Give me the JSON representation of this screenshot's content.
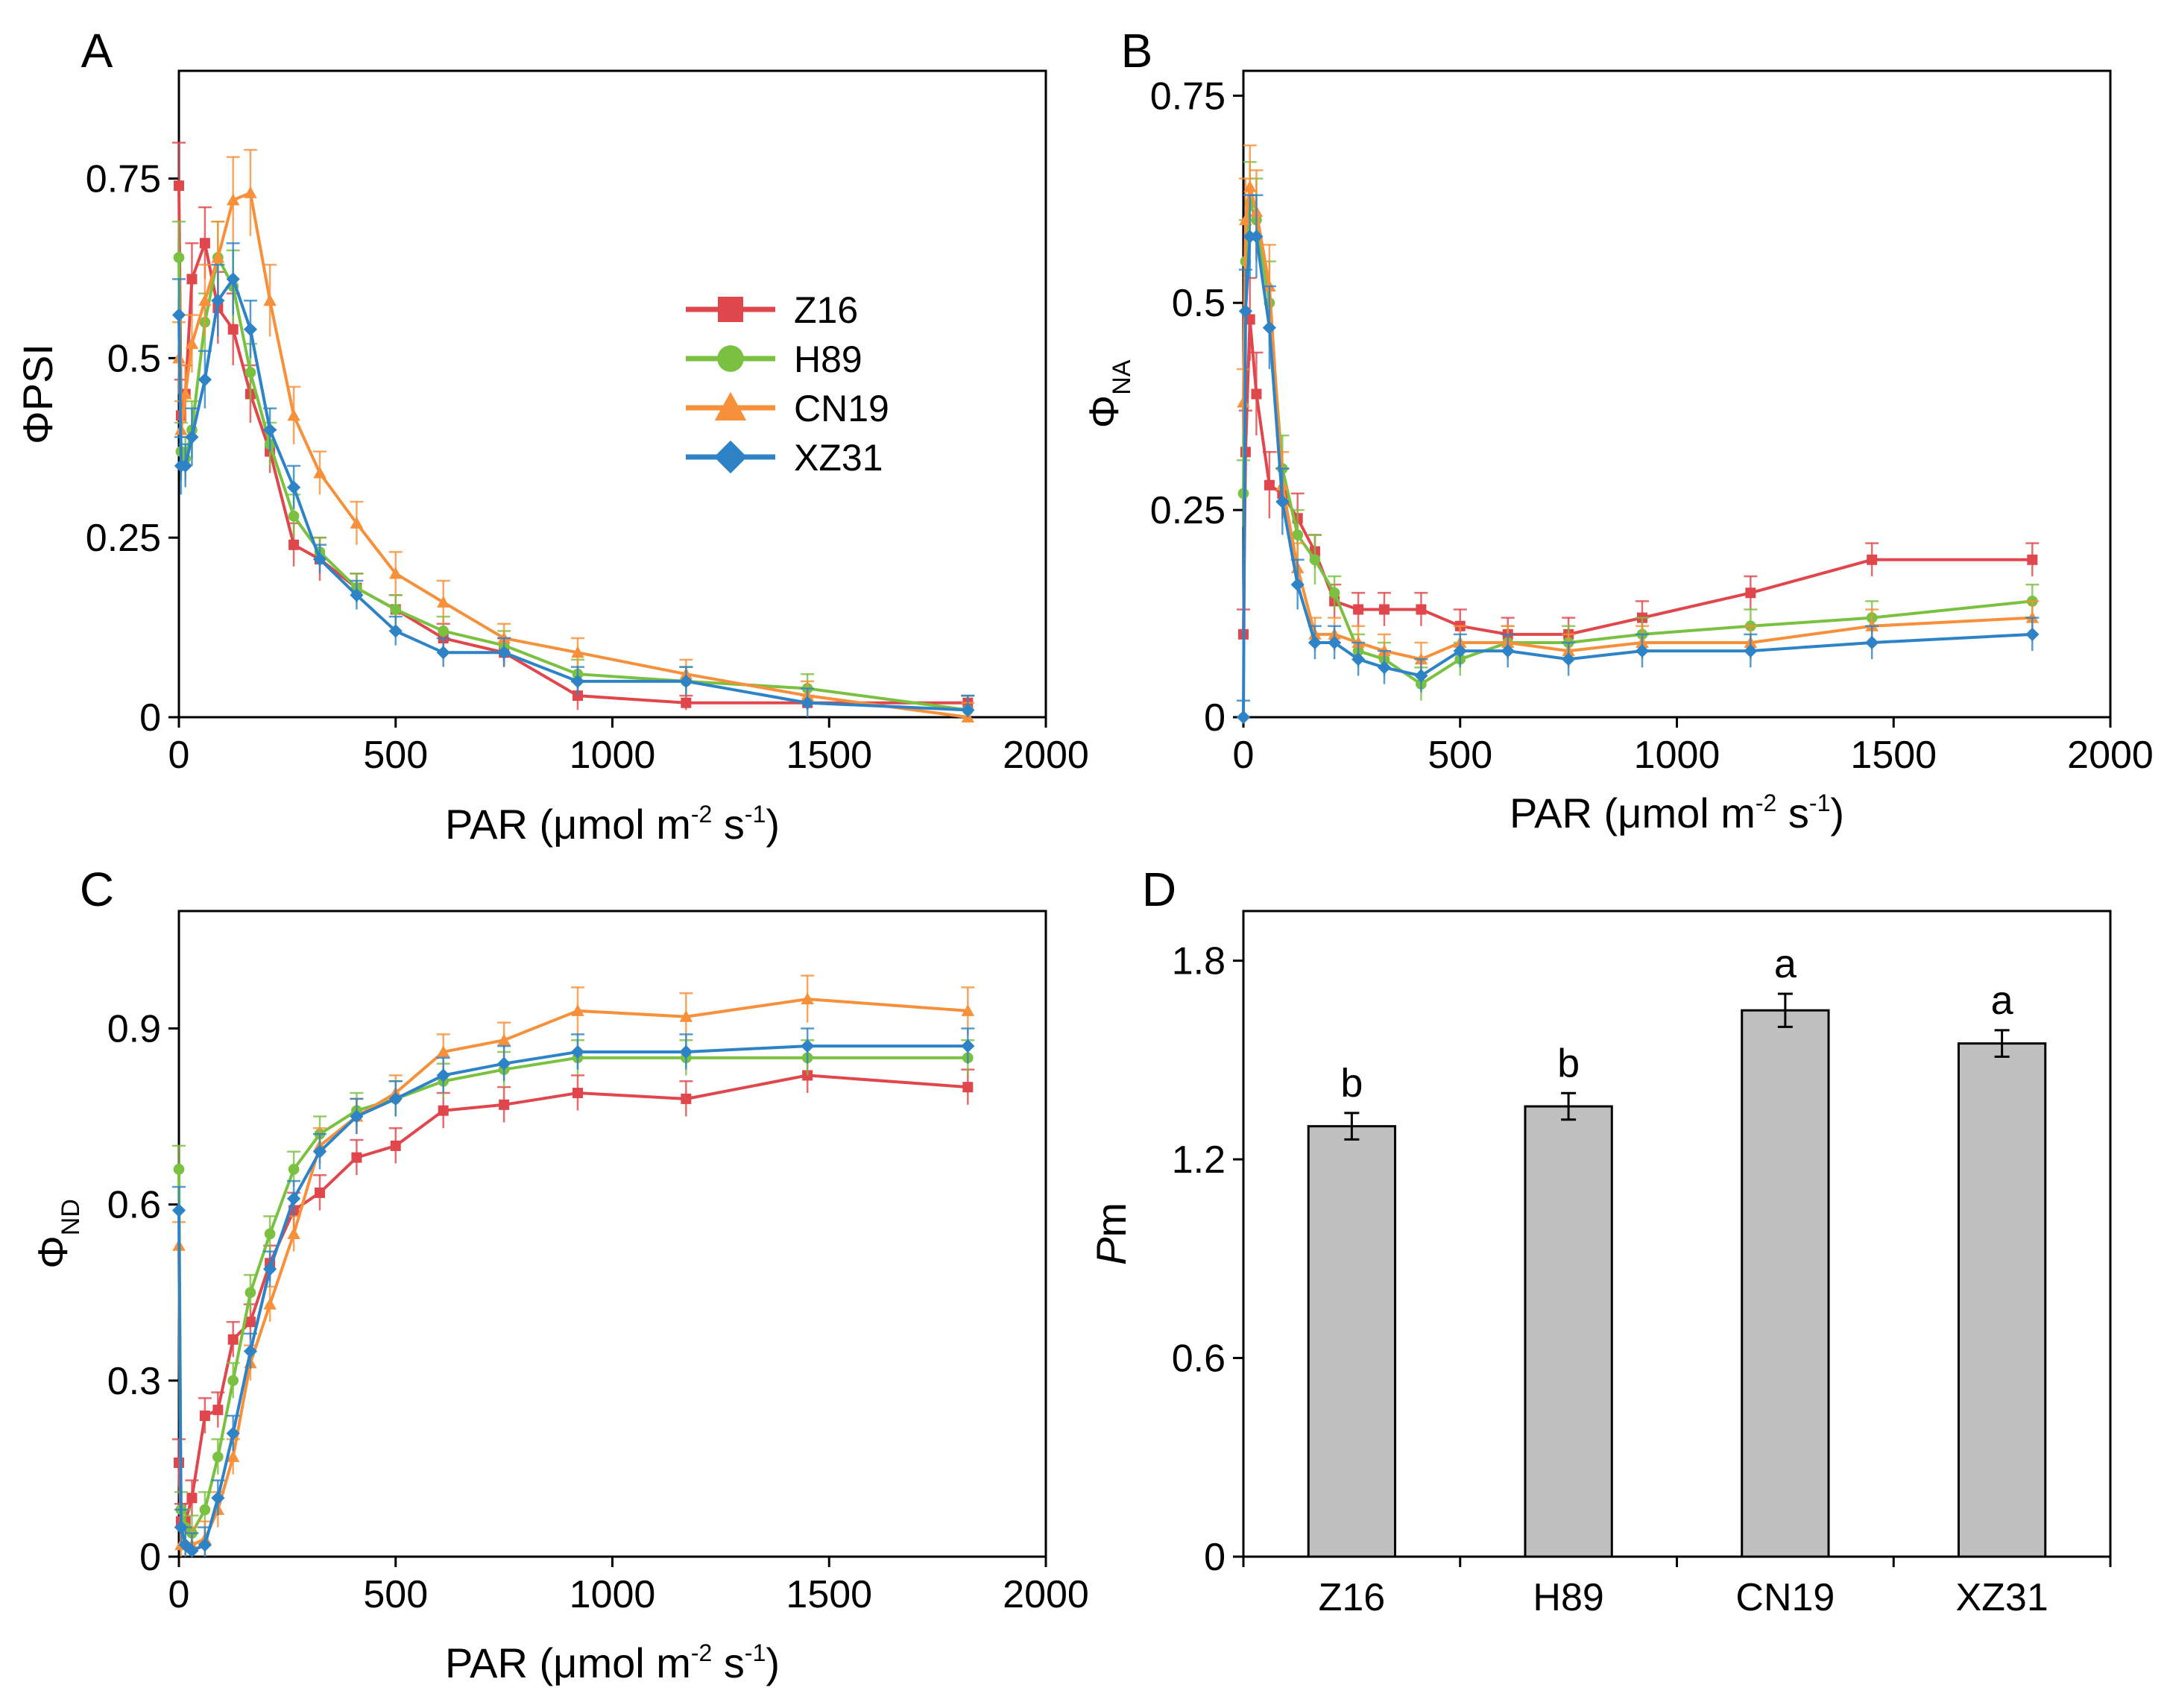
{
  "colors": {
    "Z16": "#E0474C",
    "H89": "#7AC142",
    "CN19": "#F7903A",
    "XZ31": "#2E83C6",
    "bar": "#C0C0C0"
  },
  "legend": [
    {
      "name": "Z16",
      "color": "#E0474C",
      "marker": "square"
    },
    {
      "name": "H89",
      "color": "#7AC142",
      "marker": "circle"
    },
    {
      "name": "CN19",
      "color": "#F7903A",
      "marker": "triangle"
    },
    {
      "name": "XZ31",
      "color": "#2E83C6",
      "marker": "diamond"
    }
  ],
  "chart_data": [
    {
      "panel": "A",
      "type": "line",
      "xlabel": {
        "main": "PAR (μmol m",
        "sup1": "-2",
        "mid": " s",
        "sup2": "-1",
        "close": ")"
      },
      "ylabel": {
        "main": "ΦPSI",
        "sub": ""
      },
      "xlim": [
        0,
        2000
      ],
      "ylim": [
        0,
        0.9
      ],
      "xticks": [
        0,
        500,
        1000,
        1500,
        2000
      ],
      "xtick_labels": [
        "0",
        "500",
        "1000",
        "1500",
        "2000"
      ],
      "yticks": [
        0,
        0.25,
        0.5,
        0.75
      ],
      "ytick_labels": [
        "0",
        "0.25",
        "0.5",
        "0.75"
      ],
      "legend_position": "upper-middle",
      "series": [
        {
          "name": "Z16",
          "x": [
            0,
            5,
            15,
            30,
            60,
            90,
            125,
            165,
            210,
            265,
            325,
            410,
            500,
            610,
            750,
            920,
            1170,
            1450,
            1820
          ],
          "y": [
            0.74,
            0.42,
            0.45,
            0.61,
            0.66,
            0.57,
            0.54,
            0.45,
            0.37,
            0.24,
            0.22,
            0.18,
            0.15,
            0.11,
            0.09,
            0.03,
            0.02,
            0.02,
            0.02
          ],
          "err": [
            0.06,
            0.05,
            0.04,
            0.05,
            0.05,
            0.05,
            0.05,
            0.04,
            0.03,
            0.03,
            0.03,
            0.02,
            0.02,
            0.02,
            0.02,
            0.02,
            0.01,
            0.01,
            0.01
          ]
        },
        {
          "name": "H89",
          "x": [
            0,
            5,
            15,
            30,
            60,
            90,
            125,
            165,
            210,
            265,
            325,
            410,
            500,
            610,
            750,
            920,
            1170,
            1450,
            1820
          ],
          "y": [
            0.64,
            0.37,
            0.36,
            0.4,
            0.55,
            0.64,
            0.6,
            0.48,
            0.38,
            0.28,
            0.23,
            0.18,
            0.15,
            0.12,
            0.1,
            0.06,
            0.05,
            0.04,
            0.01
          ],
          "err": [
            0.05,
            0.04,
            0.03,
            0.04,
            0.04,
            0.05,
            0.05,
            0.04,
            0.03,
            0.03,
            0.02,
            0.02,
            0.02,
            0.02,
            0.02,
            0.02,
            0.02,
            0.02,
            0.02
          ]
        },
        {
          "name": "CN19",
          "x": [
            0,
            5,
            15,
            30,
            60,
            90,
            125,
            165,
            210,
            265,
            325,
            410,
            500,
            610,
            750,
            920,
            1170,
            1450,
            1820
          ],
          "y": [
            0.5,
            0.4,
            0.45,
            0.52,
            0.58,
            0.64,
            0.72,
            0.73,
            0.58,
            0.42,
            0.34,
            0.27,
            0.2,
            0.16,
            0.11,
            0.09,
            0.06,
            0.03,
            0.0
          ],
          "err": [
            0.05,
            0.04,
            0.04,
            0.04,
            0.05,
            0.05,
            0.06,
            0.06,
            0.05,
            0.04,
            0.03,
            0.03,
            0.03,
            0.03,
            0.02,
            0.02,
            0.02,
            0.02,
            0.02
          ]
        },
        {
          "name": "XZ31",
          "x": [
            0,
            5,
            15,
            30,
            60,
            90,
            125,
            165,
            210,
            265,
            325,
            410,
            500,
            610,
            750,
            920,
            1170,
            1450,
            1820
          ],
          "y": [
            0.56,
            0.35,
            0.35,
            0.39,
            0.47,
            0.58,
            0.61,
            0.54,
            0.4,
            0.32,
            0.22,
            0.17,
            0.12,
            0.09,
            0.09,
            0.05,
            0.05,
            0.02,
            0.01
          ],
          "err": [
            0.05,
            0.04,
            0.03,
            0.04,
            0.04,
            0.05,
            0.05,
            0.04,
            0.03,
            0.03,
            0.02,
            0.02,
            0.02,
            0.02,
            0.02,
            0.02,
            0.02,
            0.02,
            0.02
          ]
        }
      ]
    },
    {
      "panel": "B",
      "type": "line",
      "xlabel": {
        "main": "PAR (μmol m",
        "sup1": "-2",
        "mid": " s",
        "sup2": "-1",
        "close": ")"
      },
      "ylabel": {
        "main": "Φ",
        "sub": "NA"
      },
      "xlim": [
        0,
        2000
      ],
      "ylim": [
        0,
        0.78
      ],
      "xticks": [
        0,
        500,
        1000,
        1500,
        2000
      ],
      "xtick_labels": [
        "0",
        "500",
        "1000",
        "1500",
        "2000"
      ],
      "yticks": [
        0,
        0.25,
        0.5,
        0.75
      ],
      "ytick_labels": [
        "0",
        "0.25",
        "0.5",
        "0.75"
      ],
      "series": [
        {
          "name": "Z16",
          "x": [
            0,
            5,
            15,
            30,
            60,
            90,
            125,
            165,
            210,
            265,
            325,
            410,
            500,
            610,
            750,
            920,
            1170,
            1450,
            1820
          ],
          "y": [
            0.1,
            0.32,
            0.48,
            0.39,
            0.28,
            0.27,
            0.24,
            0.2,
            0.14,
            0.13,
            0.13,
            0.13,
            0.11,
            0.1,
            0.1,
            0.12,
            0.15,
            0.19,
            0.19
          ],
          "err": [
            0.03,
            0.05,
            0.05,
            0.05,
            0.04,
            0.03,
            0.03,
            0.02,
            0.02,
            0.02,
            0.02,
            0.02,
            0.02,
            0.02,
            0.02,
            0.02,
            0.02,
            0.02,
            0.02
          ]
        },
        {
          "name": "H89",
          "x": [
            0,
            5,
            15,
            30,
            60,
            90,
            125,
            165,
            210,
            265,
            325,
            410,
            500,
            610,
            750,
            920,
            1170,
            1450,
            1820
          ],
          "y": [
            0.27,
            0.55,
            0.62,
            0.6,
            0.5,
            0.3,
            0.22,
            0.19,
            0.15,
            0.08,
            0.07,
            0.04,
            0.07,
            0.09,
            0.09,
            0.1,
            0.11,
            0.12,
            0.14
          ],
          "err": [
            0.04,
            0.05,
            0.05,
            0.05,
            0.05,
            0.04,
            0.03,
            0.03,
            0.02,
            0.02,
            0.02,
            0.02,
            0.02,
            0.02,
            0.02,
            0.02,
            0.02,
            0.02,
            0.02
          ]
        },
        {
          "name": "CN19",
          "x": [
            0,
            5,
            15,
            30,
            60,
            90,
            125,
            165,
            210,
            265,
            325,
            410,
            500,
            610,
            750,
            920,
            1170,
            1450,
            1820
          ],
          "y": [
            0.38,
            0.6,
            0.64,
            0.61,
            0.52,
            0.28,
            0.18,
            0.1,
            0.1,
            0.09,
            0.08,
            0.07,
            0.09,
            0.09,
            0.08,
            0.09,
            0.09,
            0.11,
            0.12
          ],
          "err": [
            0.04,
            0.05,
            0.05,
            0.05,
            0.05,
            0.04,
            0.03,
            0.02,
            0.02,
            0.02,
            0.02,
            0.02,
            0.02,
            0.02,
            0.02,
            0.02,
            0.02,
            0.02,
            0.02
          ]
        },
        {
          "name": "XZ31",
          "x": [
            0,
            5,
            15,
            30,
            60,
            90,
            125,
            165,
            210,
            265,
            325,
            410,
            500,
            610,
            750,
            920,
            1170,
            1450,
            1820
          ],
          "y": [
            0.0,
            0.49,
            0.58,
            0.58,
            0.47,
            0.26,
            0.16,
            0.09,
            0.09,
            0.07,
            0.06,
            0.05,
            0.08,
            0.08,
            0.07,
            0.08,
            0.08,
            0.09,
            0.1
          ],
          "err": [
            0.02,
            0.05,
            0.05,
            0.05,
            0.05,
            0.04,
            0.03,
            0.02,
            0.02,
            0.02,
            0.02,
            0.02,
            0.02,
            0.02,
            0.02,
            0.02,
            0.02,
            0.02,
            0.02
          ]
        }
      ]
    },
    {
      "panel": "C",
      "type": "line",
      "xlabel": {
        "main": "PAR (μmol m",
        "sup1": "-2",
        "mid": " s",
        "sup2": "-1",
        "close": ")"
      },
      "ylabel": {
        "main": "Φ",
        "sub": "ND"
      },
      "xlim": [
        0,
        2000
      ],
      "ylim": [
        0,
        1.1
      ],
      "xticks": [
        0,
        500,
        1000,
        1500,
        2000
      ],
      "xtick_labels": [
        "0",
        "500",
        "1000",
        "1500",
        "2000"
      ],
      "yticks": [
        0,
        0.3,
        0.6,
        0.9
      ],
      "ytick_labels": [
        "0",
        "0.3",
        "0.6",
        "0.9"
      ],
      "series": [
        {
          "name": "Z16",
          "x": [
            0,
            5,
            15,
            30,
            60,
            90,
            125,
            165,
            210,
            265,
            325,
            410,
            500,
            610,
            750,
            920,
            1170,
            1450,
            1820
          ],
          "y": [
            0.16,
            0.06,
            0.06,
            0.1,
            0.24,
            0.25,
            0.37,
            0.4,
            0.5,
            0.59,
            0.62,
            0.68,
            0.7,
            0.76,
            0.77,
            0.79,
            0.78,
            0.82,
            0.8
          ],
          "err": [
            0.04,
            0.03,
            0.03,
            0.03,
            0.03,
            0.03,
            0.03,
            0.03,
            0.03,
            0.03,
            0.03,
            0.03,
            0.03,
            0.03,
            0.03,
            0.03,
            0.03,
            0.03,
            0.03
          ]
        },
        {
          "name": "H89",
          "x": [
            0,
            5,
            15,
            30,
            60,
            90,
            125,
            165,
            210,
            265,
            325,
            410,
            500,
            610,
            750,
            920,
            1170,
            1450,
            1820
          ],
          "y": [
            0.66,
            0.08,
            0.05,
            0.04,
            0.08,
            0.17,
            0.3,
            0.45,
            0.55,
            0.66,
            0.72,
            0.76,
            0.78,
            0.81,
            0.83,
            0.85,
            0.85,
            0.85,
            0.85
          ],
          "err": [
            0.04,
            0.03,
            0.03,
            0.03,
            0.03,
            0.03,
            0.03,
            0.03,
            0.03,
            0.03,
            0.03,
            0.03,
            0.03,
            0.03,
            0.03,
            0.03,
            0.03,
            0.03,
            0.03
          ]
        },
        {
          "name": "CN19",
          "x": [
            0,
            5,
            15,
            30,
            60,
            90,
            125,
            165,
            210,
            265,
            325,
            410,
            500,
            610,
            750,
            920,
            1170,
            1450,
            1820
          ],
          "y": [
            0.53,
            0.02,
            0.02,
            0.02,
            0.03,
            0.08,
            0.17,
            0.33,
            0.43,
            0.55,
            0.7,
            0.75,
            0.79,
            0.86,
            0.88,
            0.93,
            0.92,
            0.95,
            0.93
          ],
          "err": [
            0.04,
            0.03,
            0.03,
            0.03,
            0.03,
            0.03,
            0.03,
            0.03,
            0.03,
            0.03,
            0.03,
            0.03,
            0.03,
            0.03,
            0.03,
            0.04,
            0.04,
            0.04,
            0.04
          ]
        },
        {
          "name": "XZ31",
          "x": [
            0,
            5,
            15,
            30,
            60,
            90,
            125,
            165,
            210,
            265,
            325,
            410,
            500,
            610,
            750,
            920,
            1170,
            1450,
            1820
          ],
          "y": [
            0.59,
            0.05,
            0.02,
            0.01,
            0.02,
            0.1,
            0.21,
            0.35,
            0.49,
            0.61,
            0.69,
            0.75,
            0.78,
            0.82,
            0.84,
            0.86,
            0.86,
            0.87,
            0.87
          ],
          "err": [
            0.04,
            0.03,
            0.03,
            0.03,
            0.03,
            0.03,
            0.03,
            0.03,
            0.03,
            0.03,
            0.03,
            0.03,
            0.03,
            0.03,
            0.03,
            0.03,
            0.03,
            0.03,
            0.03
          ]
        }
      ]
    },
    {
      "panel": "D",
      "type": "bar",
      "ylabel": {
        "main": "Pm",
        "italic_part": "P",
        "rest": "m"
      },
      "categories": [
        "Z16",
        "H89",
        "CN19",
        "XZ31"
      ],
      "values": [
        1.3,
        1.36,
        1.65,
        1.55
      ],
      "err": [
        0.04,
        0.04,
        0.05,
        0.04
      ],
      "significance": [
        "b",
        "b",
        "a",
        "a"
      ],
      "ylim": [
        0,
        1.95
      ],
      "yticks": [
        0,
        0.6,
        1.2,
        1.8
      ],
      "ytick_labels": [
        "0",
        "0.6",
        "1.2",
        "1.8"
      ],
      "bar_color": "#C0C0C0"
    }
  ]
}
